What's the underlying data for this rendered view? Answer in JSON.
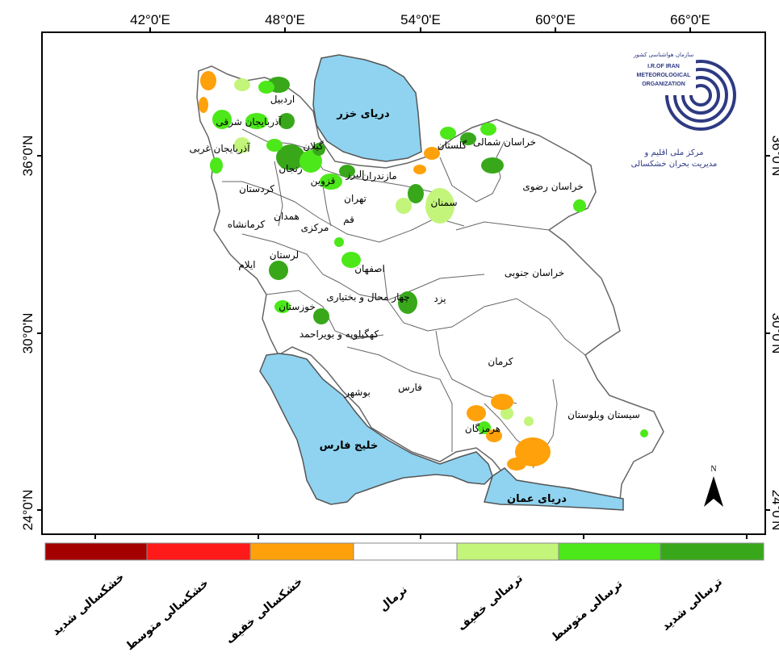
{
  "axes": {
    "top_ticks": [
      "42°0'E",
      "48°0'E",
      "54°0'E",
      "60°0'E",
      "66°0'E"
    ],
    "left_ticks": [
      "36°0'N",
      "30°0'N",
      "24°0'N"
    ],
    "right_ticks": [
      "36°0'N",
      "30°0'N",
      "24°0'N"
    ]
  },
  "seas": {
    "caspian": "دریای خزر",
    "persian_gulf": "خلیج فارس",
    "oman_sea": "دریای عمان"
  },
  "provinces": [
    "اردبیل",
    "آذربایجان شرقی",
    "آذربایجان غربی",
    "گیلان",
    "زنجان",
    "مازندران",
    "البرز",
    "قزوین",
    "کردستان",
    "تهران",
    "همدان",
    "قم",
    "کرمانشاه",
    "مرکزی",
    "سمنان",
    "گلستان",
    "خراسان شمالی",
    "خراسان رضوی",
    "لرستان",
    "ایلام",
    "اصفهان",
    "خراسان جنوبی",
    "خوزستان",
    "چهار محال و بختیاری",
    "یزد",
    "کهگیلویه و بویراحمد",
    "کرمان",
    "بوشهر",
    "فارس",
    "سیستان وبلوستان",
    "هرمزگان"
  ],
  "logo": {
    "org_fa_small": "سازمان هواشناسی کشور",
    "line1": "I.R.OF IRAN",
    "line2": "METEOROLOGICAL",
    "line3": "ORGANIZATION",
    "caption_fa_1": "مرکز ملی اقلیم و",
    "caption_fa_2": "مدیریت بحران خشکسالی"
  },
  "north_arrow": "N",
  "legend": {
    "items": [
      {
        "label": "خشکسالی شدید",
        "color": "#a50000"
      },
      {
        "label": "خشکسالی متوسط",
        "color": "#ff1a1a"
      },
      {
        "label": "خشکسالی خفیف",
        "color": "#ffa10a"
      },
      {
        "label": "نرمال",
        "color": "#ffffff"
      },
      {
        "label": "ترسالی خفیف",
        "color": "#c2f57a"
      },
      {
        "label": "ترسالی متوسط",
        "color": "#4ce81a"
      },
      {
        "label": "ترسالی شدید",
        "color": "#38a81a"
      }
    ]
  },
  "colors": {
    "water": "#8fd3f0",
    "border": "#555555",
    "frame": "#000000"
  }
}
